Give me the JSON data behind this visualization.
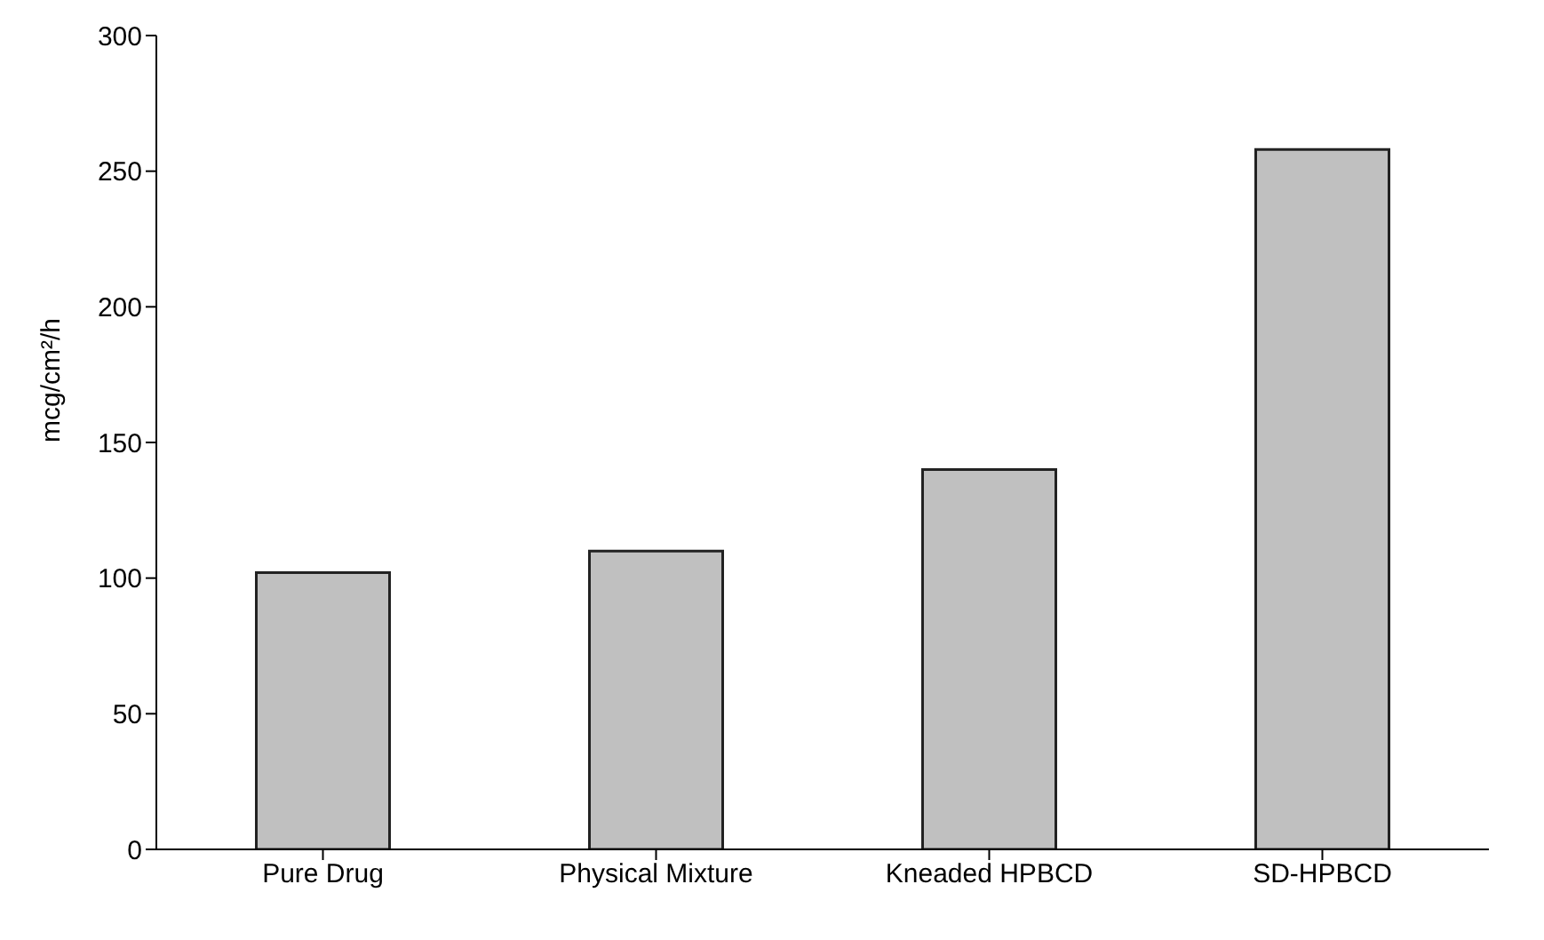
{
  "chart_data": {
    "type": "bar",
    "ylabel": "mcg/cm²/h",
    "categories": [
      "Pure Drug",
      "Physical Mixture",
      "Kneaded HPBCD",
      "SD-HPBCD"
    ],
    "values": [
      102,
      110,
      140,
      258
    ],
    "color": "#c0c0c0",
    "ylim": [
      0,
      300
    ],
    "yticks": [
      0,
      50,
      100,
      150,
      200,
      250,
      300
    ],
    "grid": false,
    "legend": false
  }
}
